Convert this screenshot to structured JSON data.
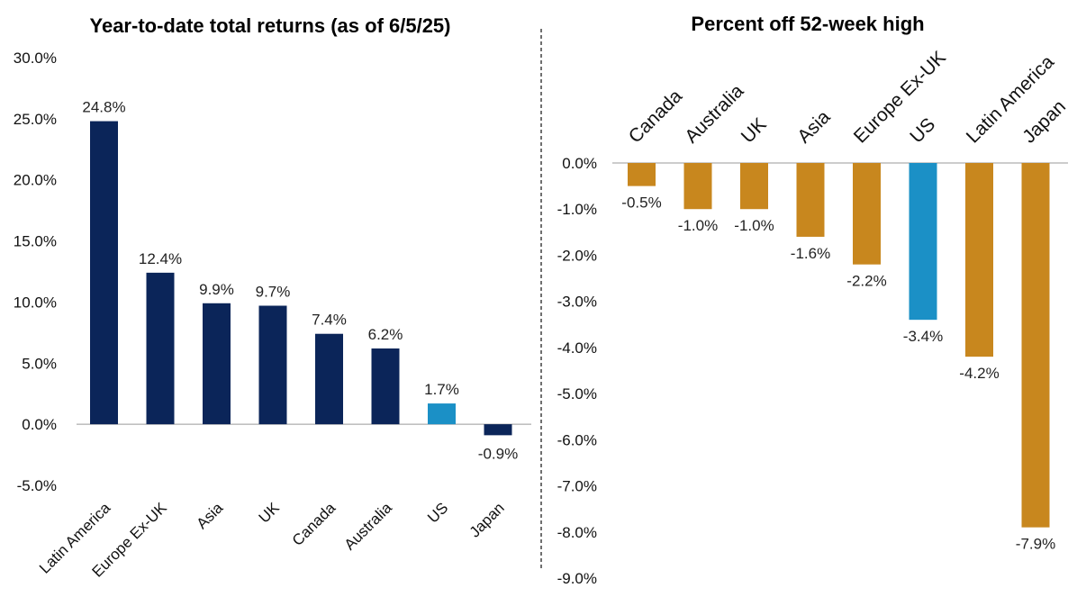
{
  "chart_data": [
    {
      "type": "bar",
      "title": "Year-to-date total returns (as of 6/5/25)",
      "categories": [
        "Latin America",
        "Europe Ex-UK",
        "Asia",
        "UK",
        "Canada",
        "Australia",
        "US",
        "Japan"
      ],
      "values": [
        24.8,
        12.4,
        9.9,
        9.7,
        7.4,
        6.2,
        1.7,
        -0.9
      ],
      "data_labels": [
        "24.8%",
        "12.4%",
        "9.9%",
        "9.7%",
        "7.4%",
        "6.2%",
        "1.7%",
        "-0.9%"
      ],
      "highlight_category": "US",
      "ylim": [
        -5,
        30
      ],
      "yticks": [
        30,
        25,
        20,
        15,
        10,
        5,
        0,
        -5
      ],
      "ytick_labels": [
        "30.0%",
        "25.0%",
        "20.0%",
        "15.0%",
        "10.0%",
        "5.0%",
        "0.0%",
        "-5.0%"
      ],
      "colors": {
        "bar": "#0b2559",
        "highlight": "#1b90c6"
      },
      "grid": false
    },
    {
      "type": "bar",
      "title": "Percent off 52-week high",
      "categories": [
        "Canada",
        "Australia",
        "UK",
        "Asia",
        "Europe Ex-UK",
        "US",
        "Latin America",
        "Japan"
      ],
      "values": [
        -0.5,
        -1.0,
        -1.0,
        -1.6,
        -2.2,
        -3.4,
        -4.2,
        -7.9
      ],
      "data_labels": [
        "-0.5%",
        "-1.0%",
        "-1.0%",
        "-1.6%",
        "-2.2%",
        "-3.4%",
        "-4.2%",
        "-7.9%"
      ],
      "highlight_category": "US",
      "ylim": [
        -9,
        0
      ],
      "yticks": [
        0,
        -1,
        -2,
        -3,
        -4,
        -5,
        -6,
        -7,
        -8,
        -9
      ],
      "ytick_labels": [
        "0.0%",
        "-1.0%",
        "-2.0%",
        "-3.0%",
        "-4.0%",
        "-5.0%",
        "-6.0%",
        "-7.0%",
        "-8.0%",
        "-9.0%"
      ],
      "colors": {
        "bar": "#c8871e",
        "highlight": "#1b90c6"
      },
      "grid": false
    }
  ]
}
